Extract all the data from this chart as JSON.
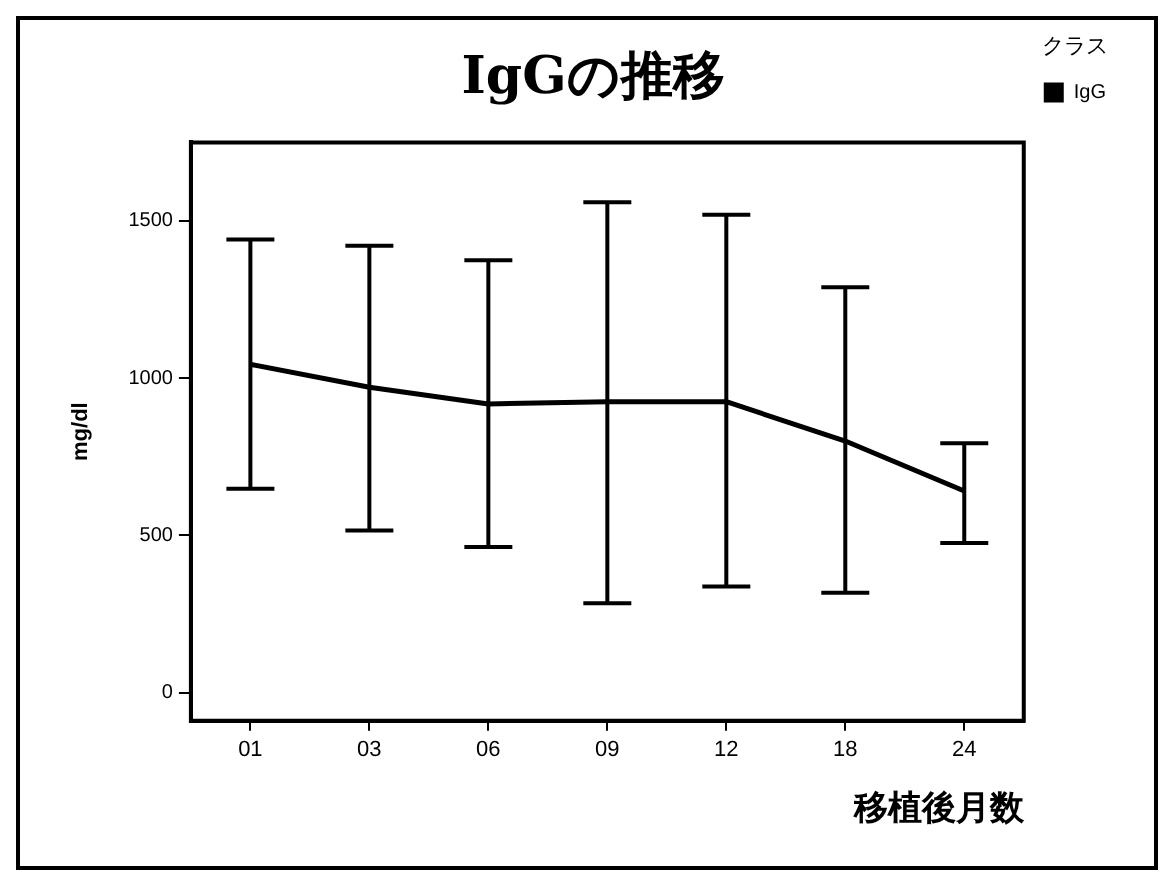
{
  "chart_data": {
    "type": "line",
    "title": "IgGの推移",
    "xlabel": "移植後月数",
    "ylabel": "mg/dl",
    "legend_title": "クラス",
    "categories": [
      "01",
      "03",
      "06",
      "09",
      "12",
      "18",
      "24"
    ],
    "series": [
      {
        "name": "IgG",
        "color": "#000000",
        "values": [
          1044,
          971,
          918,
          925,
          925,
          800,
          641
        ],
        "errors": [
          [
            648,
            1441
          ],
          [
            515,
            1421
          ],
          [
            463,
            1375
          ],
          [
            284,
            1560
          ],
          [
            337,
            1520
          ],
          [
            317,
            1289
          ],
          [
            476,
            793
          ]
        ]
      }
    ],
    "ylim": [
      -90,
      1750
    ],
    "yticks": [
      0,
      500,
      1000,
      1500
    ],
    "grid": false,
    "legend": "top right",
    "marker": "none",
    "line_style": "solid"
  }
}
